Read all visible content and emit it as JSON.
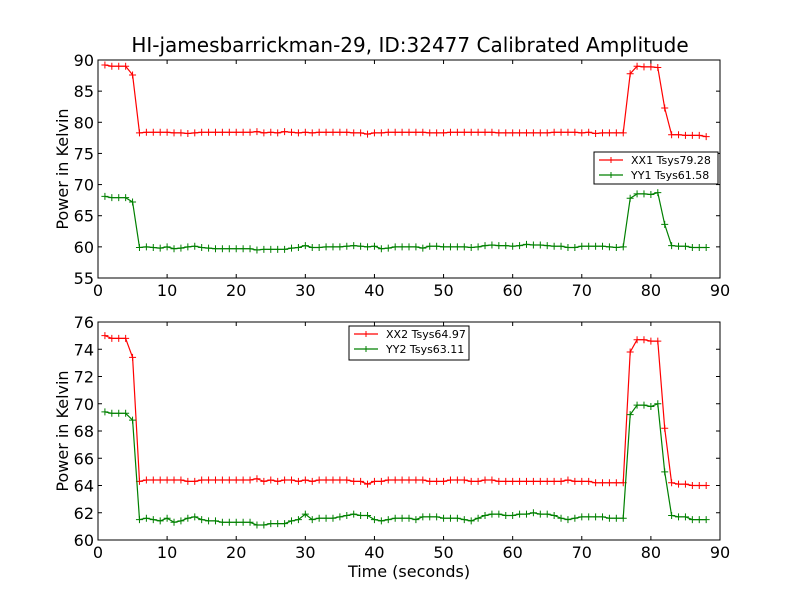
{
  "title": "HI-jamesbarrickman-29, ID:32477 Calibrated Amplitude",
  "chart_data": [
    {
      "type": "line",
      "ylabel": "Power in Kelvin",
      "xlabel": "",
      "xlim": [
        0,
        90
      ],
      "ylim": [
        55,
        90
      ],
      "xticks": [
        0,
        10,
        20,
        30,
        40,
        50,
        60,
        70,
        80,
        90
      ],
      "yticks": [
        55,
        60,
        65,
        70,
        75,
        80,
        85,
        90
      ],
      "legend": "right",
      "grid": false,
      "x": [
        1,
        2,
        3,
        4,
        5,
        6,
        7,
        8,
        9,
        10,
        11,
        12,
        13,
        14,
        15,
        16,
        17,
        18,
        19,
        20,
        21,
        22,
        23,
        24,
        25,
        26,
        27,
        28,
        29,
        30,
        31,
        32,
        33,
        34,
        35,
        36,
        37,
        38,
        39,
        40,
        41,
        42,
        43,
        44,
        45,
        46,
        47,
        48,
        49,
        50,
        51,
        52,
        53,
        54,
        55,
        56,
        57,
        58,
        59,
        60,
        61,
        62,
        63,
        64,
        65,
        66,
        67,
        68,
        69,
        70,
        71,
        72,
        73,
        74,
        75,
        76,
        77,
        78,
        79,
        80,
        81,
        82,
        83,
        84,
        85,
        86,
        87,
        88
      ],
      "series": [
        {
          "name": "XX1 Tsys79.28",
          "color": "#ff0000",
          "values": [
            89.2,
            89.0,
            89.0,
            89.0,
            87.6,
            78.3,
            78.4,
            78.4,
            78.4,
            78.4,
            78.3,
            78.3,
            78.2,
            78.3,
            78.4,
            78.4,
            78.4,
            78.4,
            78.4,
            78.4,
            78.4,
            78.4,
            78.5,
            78.3,
            78.4,
            78.3,
            78.5,
            78.4,
            78.3,
            78.4,
            78.3,
            78.4,
            78.4,
            78.4,
            78.4,
            78.4,
            78.3,
            78.3,
            78.1,
            78.3,
            78.3,
            78.4,
            78.4,
            78.4,
            78.4,
            78.4,
            78.4,
            78.3,
            78.3,
            78.3,
            78.4,
            78.4,
            78.4,
            78.4,
            78.4,
            78.4,
            78.4,
            78.3,
            78.3,
            78.3,
            78.3,
            78.3,
            78.3,
            78.3,
            78.3,
            78.4,
            78.4,
            78.4,
            78.4,
            78.3,
            78.4,
            78.2,
            78.3,
            78.3,
            78.3,
            78.3,
            87.8,
            89.0,
            88.9,
            88.9,
            88.8,
            82.3,
            78.0,
            78.0,
            77.9,
            77.9,
            77.9,
            77.7
          ]
        },
        {
          "name": "YY1 Tsys61.58",
          "color": "#008000",
          "values": [
            68.1,
            67.9,
            67.9,
            67.9,
            67.2,
            59.9,
            60.0,
            59.9,
            59.8,
            60.0,
            59.7,
            59.8,
            60.0,
            60.1,
            59.9,
            59.8,
            59.7,
            59.7,
            59.7,
            59.7,
            59.7,
            59.7,
            59.5,
            59.6,
            59.6,
            59.6,
            59.6,
            59.8,
            59.9,
            60.2,
            59.9,
            59.9,
            60.0,
            60.0,
            60.0,
            60.1,
            60.2,
            60.1,
            60.0,
            60.1,
            59.7,
            59.8,
            60.0,
            60.0,
            60.0,
            60.0,
            59.8,
            60.1,
            60.1,
            60.0,
            60.0,
            60.0,
            60.0,
            59.9,
            60.0,
            60.2,
            60.3,
            60.2,
            60.2,
            60.1,
            60.2,
            60.4,
            60.3,
            60.3,
            60.2,
            60.1,
            60.1,
            59.9,
            59.9,
            60.1,
            60.1,
            60.1,
            60.1,
            60.0,
            59.9,
            60.0,
            67.8,
            68.5,
            68.5,
            68.4,
            68.7,
            63.6,
            60.2,
            60.1,
            60.1,
            59.9,
            59.9,
            59.9
          ]
        }
      ]
    },
    {
      "type": "line",
      "ylabel": "Power in Kelvin",
      "xlabel": "Time (seconds)",
      "xlim": [
        0,
        90
      ],
      "ylim": [
        60,
        76
      ],
      "xticks": [
        0,
        10,
        20,
        30,
        40,
        50,
        60,
        70,
        80,
        90
      ],
      "yticks": [
        60,
        62,
        64,
        66,
        68,
        70,
        72,
        74,
        76
      ],
      "legend": "top-center",
      "grid": false,
      "x": [
        1,
        2,
        3,
        4,
        5,
        6,
        7,
        8,
        9,
        10,
        11,
        12,
        13,
        14,
        15,
        16,
        17,
        18,
        19,
        20,
        21,
        22,
        23,
        24,
        25,
        26,
        27,
        28,
        29,
        30,
        31,
        32,
        33,
        34,
        35,
        36,
        37,
        38,
        39,
        40,
        41,
        42,
        43,
        44,
        45,
        46,
        47,
        48,
        49,
        50,
        51,
        52,
        53,
        54,
        55,
        56,
        57,
        58,
        59,
        60,
        61,
        62,
        63,
        64,
        65,
        66,
        67,
        68,
        69,
        70,
        71,
        72,
        73,
        74,
        75,
        76,
        77,
        78,
        79,
        80,
        81,
        82,
        83,
        84,
        85,
        86,
        87,
        88
      ],
      "series": [
        {
          "name": "XX2 Tsys64.97",
          "color": "#ff0000",
          "values": [
            75.0,
            74.8,
            74.8,
            74.8,
            73.4,
            64.3,
            64.4,
            64.4,
            64.4,
            64.4,
            64.4,
            64.4,
            64.3,
            64.3,
            64.4,
            64.4,
            64.4,
            64.4,
            64.4,
            64.4,
            64.4,
            64.4,
            64.5,
            64.3,
            64.4,
            64.3,
            64.4,
            64.4,
            64.3,
            64.4,
            64.3,
            64.4,
            64.4,
            64.4,
            64.4,
            64.4,
            64.3,
            64.3,
            64.1,
            64.3,
            64.3,
            64.4,
            64.4,
            64.4,
            64.4,
            64.4,
            64.4,
            64.3,
            64.3,
            64.3,
            64.4,
            64.4,
            64.4,
            64.3,
            64.3,
            64.4,
            64.4,
            64.3,
            64.3,
            64.3,
            64.3,
            64.3,
            64.3,
            64.3,
            64.3,
            64.3,
            64.3,
            64.4,
            64.3,
            64.3,
            64.3,
            64.2,
            64.2,
            64.2,
            64.2,
            64.2,
            73.8,
            74.7,
            74.7,
            74.6,
            74.6,
            68.2,
            64.2,
            64.1,
            64.1,
            64.0,
            64.0,
            64.0
          ]
        },
        {
          "name": "YY2 Tsys63.11",
          "color": "#008000",
          "values": [
            69.4,
            69.3,
            69.3,
            69.3,
            68.8,
            61.5,
            61.6,
            61.5,
            61.4,
            61.6,
            61.3,
            61.4,
            61.6,
            61.7,
            61.5,
            61.4,
            61.4,
            61.3,
            61.3,
            61.3,
            61.3,
            61.3,
            61.1,
            61.1,
            61.2,
            61.2,
            61.2,
            61.4,
            61.5,
            61.9,
            61.5,
            61.6,
            61.6,
            61.6,
            61.7,
            61.8,
            61.9,
            61.8,
            61.8,
            61.5,
            61.4,
            61.5,
            61.6,
            61.6,
            61.6,
            61.5,
            61.7,
            61.7,
            61.7,
            61.6,
            61.6,
            61.6,
            61.5,
            61.4,
            61.6,
            61.8,
            61.9,
            61.9,
            61.8,
            61.8,
            61.9,
            61.9,
            62.0,
            61.9,
            61.9,
            61.8,
            61.6,
            61.5,
            61.6,
            61.7,
            61.7,
            61.7,
            61.7,
            61.6,
            61.6,
            61.6,
            69.2,
            69.9,
            69.9,
            69.8,
            70.0,
            65.0,
            61.8,
            61.7,
            61.7,
            61.5,
            61.5,
            61.5
          ]
        }
      ]
    }
  ]
}
